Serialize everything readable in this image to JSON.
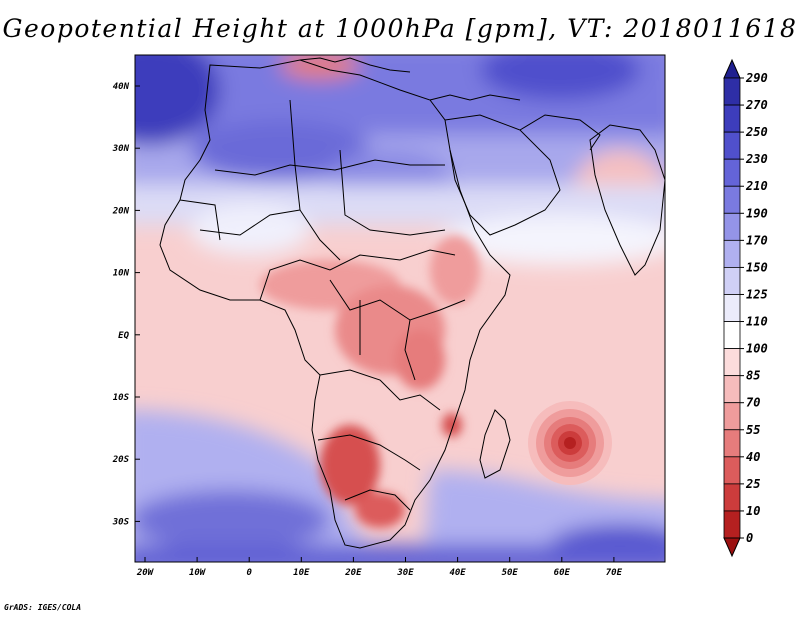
{
  "title": "Geopotential Height at 1000hPa [gpm], VT: 2018011618",
  "credit": "GrADS: IGES/COLA",
  "x_ticks": [
    "20W",
    "10W",
    "0",
    "10E",
    "20E",
    "30E",
    "40E",
    "50E",
    "60E",
    "70E"
  ],
  "y_ticks": [
    "40N",
    "30N",
    "20N",
    "10N",
    "EQ",
    "10S",
    "20S",
    "30S"
  ],
  "colorbar": {
    "levels": [
      "290",
      "270",
      "250",
      "230",
      "210",
      "190",
      "170",
      "150",
      "125",
      "110",
      "100",
      "85",
      "70",
      "55",
      "40",
      "25",
      "10",
      "0"
    ],
    "colors": [
      "#1f1f8f",
      "#2e2ea6",
      "#3d3dbc",
      "#5050cc",
      "#6464d8",
      "#7a7ae0",
      "#9494e8",
      "#b0b0f0",
      "#d0d0f6",
      "#ececfb",
      "#ffffff",
      "#fcdcdc",
      "#f6bcbc",
      "#ef9c9c",
      "#e67c7c",
      "#dc5c5c",
      "#cc3c3c",
      "#b52020",
      "#9b1010"
    ]
  },
  "colors": {
    "land_border": "#000000"
  }
}
